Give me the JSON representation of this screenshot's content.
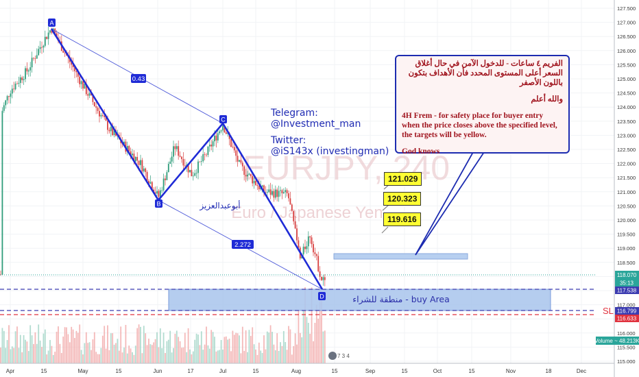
{
  "chart_data": {
    "type": "candlestick",
    "title": "EURJPY, 240",
    "subtitle": "Euro / Japanese Yen",
    "x_tick_labels": [
      "Apr",
      "15",
      "May",
      "15",
      "Jun",
      "17",
      "Jul",
      "15",
      "Aug",
      "15",
      "Sep",
      "15",
      "Oct",
      "15",
      "Nov",
      "18",
      "Dec"
    ],
    "y_tick_labels": [
      "127.500",
      "127.000",
      "126.500",
      "126.000",
      "125.500",
      "125.000",
      "124.500",
      "124.000",
      "123.500",
      "123.000",
      "122.500",
      "122.000",
      "121.500",
      "121.000",
      "120.500",
      "120.000",
      "119.500",
      "119.000",
      "118.500",
      "118.000",
      "117.500",
      "117.000",
      "116.500",
      "116.000",
      "115.500",
      "115.000"
    ],
    "ylim": [
      114.85,
      127.8
    ],
    "harmonic_points": [
      {
        "label": "A",
        "price": 126.8
      },
      {
        "label": "B",
        "price": 120.8
      },
      {
        "label": "C",
        "price": 123.4
      },
      {
        "label": "D",
        "price": 117.8
      }
    ],
    "fib_ratios": [
      "0.43",
      "2.272"
    ],
    "levels": {
      "current_price": "118.070",
      "countdown": "35:13",
      "buy_upper": "117.538",
      "sl_price": "116.799",
      "sl_red": "116.633",
      "volume": "Volume ~ 48.213K"
    },
    "targets": [
      "121.029",
      "120.323",
      "119.616"
    ],
    "buy_area_label": "منطقة للشراء - buy Area",
    "sl_label": "SL",
    "author_label": "أبوعبدالعزيز",
    "small_icon_label": "7 3 4"
  },
  "social": {
    "telegram_label": "Telegram:",
    "telegram_handle": "@Investment_man",
    "twitter_label": "Twitter:",
    "twitter_handle": "@iS143x (investingman)"
  },
  "note": {
    "arabic_text": "الفريم ٤ ساعات - للدخول الآمن في حال أغلاق السعر أعلى المستوى المحدد فأن الأهداف بتكون باللون الأصفر",
    "arabic_closing": "والله أعلم",
    "english_text": "4H Frem - for safety place for buyer entry when the price closes above the specified level, the targets will be yellow.",
    "english_closing": "God knows"
  },
  "colors": {
    "pattern_blue": "#1f2bd6",
    "thin_blue": "#4a56d8",
    "buy_area_fill": "#adc8ee",
    "target_yellow": "#ffff33",
    "sl_red": "#e0323e",
    "candle_up": "#2e9c7a",
    "candle_down": "#d84040",
    "watermark": "#d9a2a8"
  }
}
